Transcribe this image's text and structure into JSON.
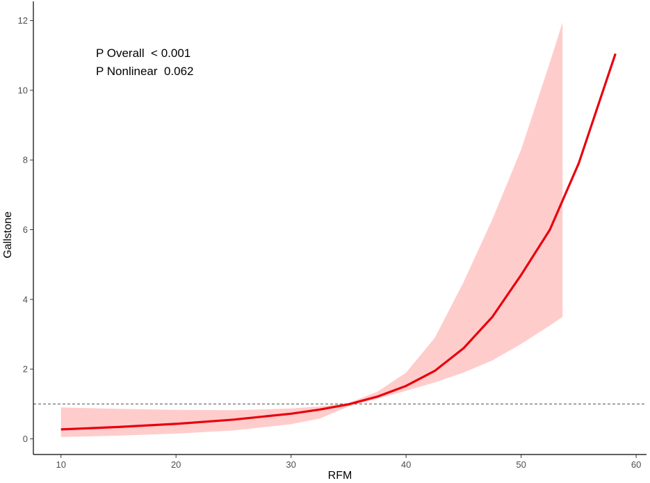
{
  "chart_data": {
    "type": "line",
    "xlabel": "RFM",
    "ylabel": "Gallstone",
    "xlim": [
      7.6,
      60.9
    ],
    "ylim": [
      -0.45,
      12.55
    ],
    "x_ticks": [
      10,
      20,
      30,
      40,
      50,
      60
    ],
    "y_ticks": [
      0,
      2,
      4,
      6,
      8,
      10,
      12
    ],
    "reference_line": {
      "y": 1,
      "style": "dashed",
      "color": "#4d4d4d"
    },
    "annotations": [
      "P Overall  < 0.001",
      "P Nonlinear  0.062"
    ],
    "series": [
      {
        "kind": "line",
        "color": "#e8000b",
        "x": [
          10,
          15,
          20,
          25,
          30,
          32.5,
          35,
          37.5,
          40,
          42.5,
          45,
          47.5,
          50,
          52.5,
          55,
          58.2
        ],
        "y": [
          0.27,
          0.34,
          0.43,
          0.55,
          0.72,
          0.84,
          0.99,
          1.21,
          1.52,
          1.95,
          2.6,
          3.5,
          4.7,
          6.0,
          7.9,
          11.05
        ]
      },
      {
        "kind": "confidence-band",
        "color": "#ffcccc",
        "x": [
          10,
          15,
          20,
          25,
          30,
          32.5,
          35,
          37.5,
          40,
          42.5,
          45,
          47.5,
          50,
          52.5,
          53.6
        ],
        "lower": [
          0.05,
          0.09,
          0.15,
          0.24,
          0.42,
          0.58,
          0.93,
          1.15,
          1.38,
          1.62,
          1.9,
          2.25,
          2.72,
          3.25,
          3.5
        ],
        "upper": [
          0.9,
          0.86,
          0.83,
          0.82,
          0.87,
          0.93,
          1.03,
          1.35,
          1.9,
          2.9,
          4.5,
          6.3,
          8.3,
          10.8,
          11.95
        ]
      }
    ]
  }
}
